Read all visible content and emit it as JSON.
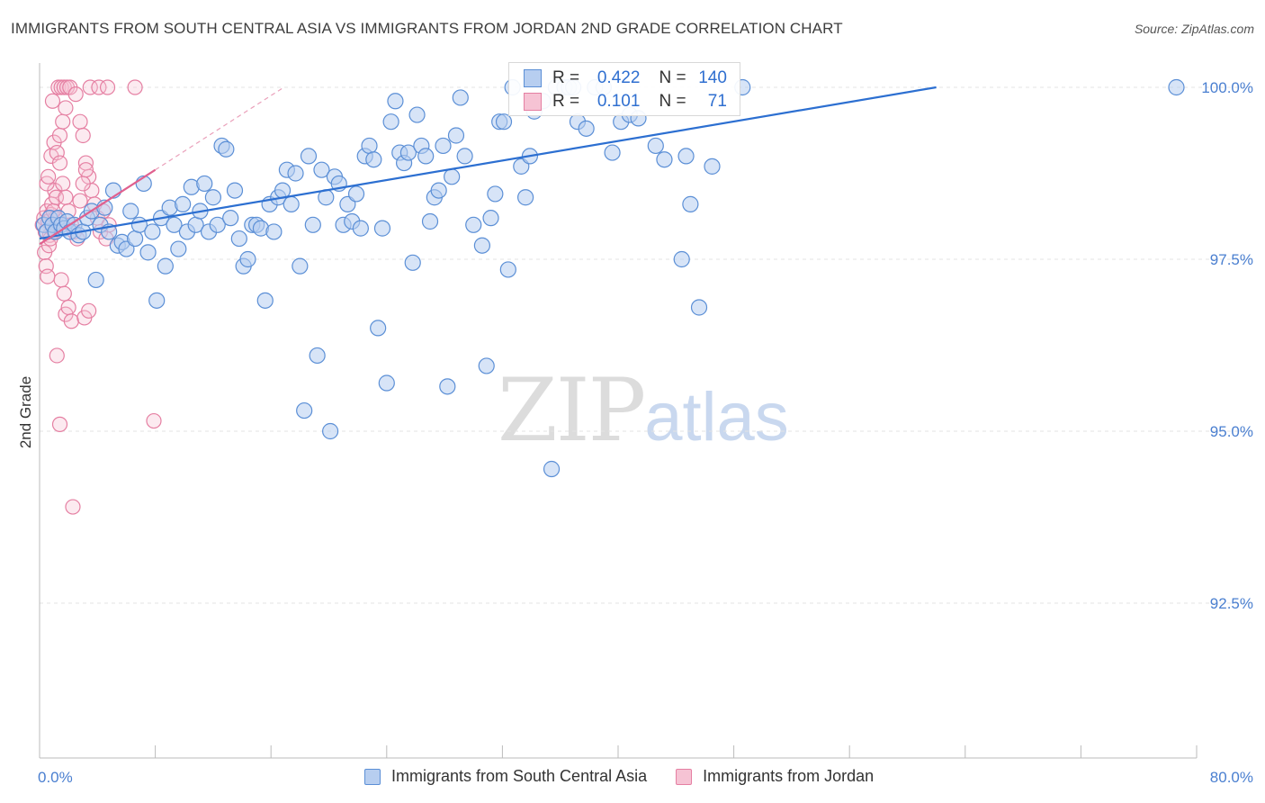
{
  "title": "IMMIGRANTS FROM SOUTH CENTRAL ASIA VS IMMIGRANTS FROM JORDAN 2ND GRADE CORRELATION CHART",
  "source": "Source: ZipAtlas.com",
  "watermark": {
    "zip": "ZIP",
    "atlas": "atlas"
  },
  "colors": {
    "blue": "#5b8fd6",
    "blue_fill": "#b7cef0",
    "blue_line": "#2c6fd1",
    "pink": "#e57fa2",
    "pink_fill": "#f6c3d4",
    "pink_line": "#e0608e",
    "tick_label": "#4a7fd0"
  },
  "stats": {
    "blue": {
      "r_label": "R =",
      "r": "0.422",
      "n_label": "N =",
      "n": "140"
    },
    "pink": {
      "r_label": "R =",
      "r": "0.101",
      "n_label": "N =",
      "n": "71"
    }
  },
  "legend": {
    "blue": "Immigrants from South Central Asia",
    "pink": "Immigrants from Jordan"
  },
  "chart_data": {
    "type": "scatter",
    "title": "IMMIGRANTS FROM SOUTH CENTRAL ASIA VS IMMIGRANTS FROM JORDAN 2ND GRADE CORRELATION CHART",
    "xlabel": "",
    "ylabel": "2nd Grade",
    "xlim": [
      0,
      80
    ],
    "ylim": [
      90.7,
      100.45
    ],
    "x_tick_labels": [
      "0.0%",
      "80.0%"
    ],
    "y_ticks": [
      92.5,
      95.0,
      97.5,
      100.0
    ],
    "y_tick_labels": [
      "92.5%",
      "95.0%",
      "97.5%",
      "100.0%"
    ],
    "grid": true,
    "legend_position": "bottom",
    "series": [
      {
        "name": "Immigrants from South Central Asia",
        "color": "#5b8fd6",
        "trend": {
          "x": [
            0,
            62
          ],
          "y": [
            97.8,
            100.0
          ]
        },
        "points": [
          [
            0.3,
            98.0
          ],
          [
            0.5,
            97.9
          ],
          [
            0.7,
            98.1
          ],
          [
            0.9,
            98.0
          ],
          [
            1.1,
            97.9
          ],
          [
            1.3,
            98.1
          ],
          [
            1.5,
            98.0
          ],
          [
            1.7,
            97.95
          ],
          [
            1.9,
            98.05
          ],
          [
            2.1,
            97.9
          ],
          [
            2.4,
            98.0
          ],
          [
            2.7,
            97.85
          ],
          [
            3.0,
            97.9
          ],
          [
            3.3,
            98.1
          ],
          [
            3.6,
            98.2
          ],
          [
            3.9,
            97.2
          ],
          [
            4.2,
            98.0
          ],
          [
            4.5,
            98.25
          ],
          [
            4.8,
            97.9
          ],
          [
            5.1,
            98.5
          ],
          [
            5.4,
            97.7
          ],
          [
            5.7,
            97.75
          ],
          [
            6.0,
            97.65
          ],
          [
            6.3,
            98.2
          ],
          [
            6.6,
            97.8
          ],
          [
            6.9,
            98.0
          ],
          [
            7.2,
            98.6
          ],
          [
            7.5,
            97.6
          ],
          [
            7.8,
            97.9
          ],
          [
            8.1,
            96.9
          ],
          [
            8.4,
            98.1
          ],
          [
            8.7,
            97.4
          ],
          [
            9.0,
            98.25
          ],
          [
            9.3,
            98.0
          ],
          [
            9.6,
            97.65
          ],
          [
            9.9,
            98.3
          ],
          [
            10.2,
            97.9
          ],
          [
            10.5,
            98.55
          ],
          [
            10.8,
            98.0
          ],
          [
            11.1,
            98.2
          ],
          [
            11.4,
            98.6
          ],
          [
            11.7,
            97.9
          ],
          [
            12.0,
            98.4
          ],
          [
            12.3,
            98.0
          ],
          [
            12.6,
            99.15
          ],
          [
            12.9,
            99.1
          ],
          [
            13.2,
            98.1
          ],
          [
            13.5,
            98.5
          ],
          [
            13.8,
            97.8
          ],
          [
            14.1,
            97.4
          ],
          [
            14.4,
            97.5
          ],
          [
            14.7,
            98.0
          ],
          [
            15.0,
            98.0
          ],
          [
            15.3,
            97.95
          ],
          [
            15.6,
            96.9
          ],
          [
            15.9,
            98.3
          ],
          [
            16.2,
            97.9
          ],
          [
            16.5,
            98.4
          ],
          [
            16.8,
            98.5
          ],
          [
            17.1,
            98.8
          ],
          [
            17.4,
            98.3
          ],
          [
            17.7,
            98.75
          ],
          [
            18.0,
            97.4
          ],
          [
            18.3,
            95.3
          ],
          [
            18.6,
            99.0
          ],
          [
            18.9,
            98.0
          ],
          [
            19.2,
            96.1
          ],
          [
            19.5,
            98.8
          ],
          [
            19.8,
            98.4
          ],
          [
            20.1,
            95.0
          ],
          [
            20.4,
            98.7
          ],
          [
            20.7,
            98.6
          ],
          [
            21.0,
            98.0
          ],
          [
            21.3,
            98.3
          ],
          [
            21.6,
            98.05
          ],
          [
            21.9,
            98.45
          ],
          [
            22.2,
            97.95
          ],
          [
            22.5,
            99.0
          ],
          [
            22.8,
            99.15
          ],
          [
            23.1,
            98.95
          ],
          [
            23.4,
            96.5
          ],
          [
            23.7,
            97.95
          ],
          [
            24.0,
            95.7
          ],
          [
            24.3,
            99.5
          ],
          [
            24.6,
            99.8
          ],
          [
            24.9,
            99.05
          ],
          [
            25.2,
            98.9
          ],
          [
            25.5,
            99.05
          ],
          [
            25.8,
            97.45
          ],
          [
            26.1,
            99.6
          ],
          [
            26.4,
            99.15
          ],
          [
            26.7,
            99.0
          ],
          [
            27.0,
            98.05
          ],
          [
            27.3,
            98.4
          ],
          [
            27.6,
            98.5
          ],
          [
            27.9,
            99.15
          ],
          [
            28.2,
            95.65
          ],
          [
            28.5,
            98.7
          ],
          [
            28.8,
            99.3
          ],
          [
            29.1,
            99.85
          ],
          [
            29.4,
            99.0
          ],
          [
            30.0,
            98.0
          ],
          [
            30.6,
            97.7
          ],
          [
            30.9,
            95.95
          ],
          [
            31.2,
            98.1
          ],
          [
            31.5,
            98.45
          ],
          [
            31.8,
            99.5
          ],
          [
            32.1,
            99.5
          ],
          [
            32.4,
            97.35
          ],
          [
            32.7,
            100.0
          ],
          [
            33.3,
            98.85
          ],
          [
            33.6,
            98.4
          ],
          [
            33.9,
            99.0
          ],
          [
            34.2,
            99.65
          ],
          [
            34.8,
            99.8
          ],
          [
            35.4,
            94.45
          ],
          [
            35.7,
            100.0
          ],
          [
            36.3,
            100.0
          ],
          [
            36.6,
            100.0
          ],
          [
            36.9,
            100.0
          ],
          [
            37.2,
            99.5
          ],
          [
            37.8,
            99.4
          ],
          [
            38.4,
            100.0
          ],
          [
            39.0,
            100.0
          ],
          [
            39.6,
            99.05
          ],
          [
            40.2,
            99.5
          ],
          [
            40.8,
            99.6
          ],
          [
            41.4,
            99.55
          ],
          [
            42.6,
            99.15
          ],
          [
            43.2,
            98.95
          ],
          [
            44.4,
            97.5
          ],
          [
            44.7,
            99.0
          ],
          [
            45.0,
            98.3
          ],
          [
            45.6,
            96.8
          ],
          [
            46.5,
            98.85
          ],
          [
            48.6,
            100.0
          ],
          [
            78.6,
            100.0
          ]
        ]
      },
      {
        "name": "Immigrants from Jordan",
        "color": "#e57fa2",
        "trend": {
          "x": [
            0,
            8
          ],
          "y": [
            97.72,
            98.8
          ]
        },
        "points": [
          [
            0.2,
            98.0
          ],
          [
            0.3,
            98.1
          ],
          [
            0.4,
            97.9
          ],
          [
            0.5,
            98.2
          ],
          [
            0.6,
            98.05
          ],
          [
            0.7,
            97.85
          ],
          [
            0.8,
            98.15
          ],
          [
            0.9,
            98.0
          ],
          [
            1.0,
            97.9
          ],
          [
            1.1,
            98.1
          ],
          [
            1.2,
            98.0
          ],
          [
            0.35,
            97.6
          ],
          [
            0.45,
            97.4
          ],
          [
            0.55,
            97.25
          ],
          [
            0.65,
            97.7
          ],
          [
            0.75,
            97.8
          ],
          [
            0.85,
            98.3
          ],
          [
            0.95,
            98.2
          ],
          [
            1.05,
            98.5
          ],
          [
            1.15,
            98.4
          ],
          [
            0.5,
            98.6
          ],
          [
            0.6,
            98.7
          ],
          [
            0.8,
            99.0
          ],
          [
            1.0,
            99.2
          ],
          [
            1.2,
            99.05
          ],
          [
            1.4,
            99.3
          ],
          [
            1.6,
            99.5
          ],
          [
            1.8,
            99.7
          ],
          [
            0.9,
            99.8
          ],
          [
            1.3,
            100.0
          ],
          [
            1.5,
            100.0
          ],
          [
            1.7,
            100.0
          ],
          [
            1.9,
            100.0
          ],
          [
            2.1,
            100.0
          ],
          [
            2.5,
            99.9
          ],
          [
            2.8,
            99.5
          ],
          [
            3.0,
            99.3
          ],
          [
            3.2,
            98.9
          ],
          [
            3.4,
            98.7
          ],
          [
            3.6,
            98.5
          ],
          [
            3.8,
            98.3
          ],
          [
            4.0,
            98.1
          ],
          [
            4.2,
            97.9
          ],
          [
            4.4,
            98.2
          ],
          [
            4.6,
            97.8
          ],
          [
            4.8,
            98.0
          ],
          [
            1.4,
            98.9
          ],
          [
            1.6,
            98.6
          ],
          [
            1.8,
            98.4
          ],
          [
            2.0,
            98.2
          ],
          [
            2.2,
            98.0
          ],
          [
            2.4,
            97.9
          ],
          [
            2.6,
            97.8
          ],
          [
            2.8,
            98.35
          ],
          [
            3.0,
            98.6
          ],
          [
            3.2,
            98.8
          ],
          [
            1.5,
            97.2
          ],
          [
            1.7,
            97.0
          ],
          [
            1.8,
            96.7
          ],
          [
            2.0,
            96.8
          ],
          [
            2.2,
            96.6
          ],
          [
            3.1,
            96.65
          ],
          [
            3.4,
            96.75
          ],
          [
            1.2,
            96.1
          ],
          [
            1.4,
            95.1
          ],
          [
            2.3,
            93.9
          ],
          [
            7.9,
            95.15
          ],
          [
            3.5,
            100.0
          ],
          [
            4.1,
            100.0
          ],
          [
            4.7,
            100.0
          ],
          [
            6.6,
            100.0
          ]
        ]
      }
    ]
  }
}
